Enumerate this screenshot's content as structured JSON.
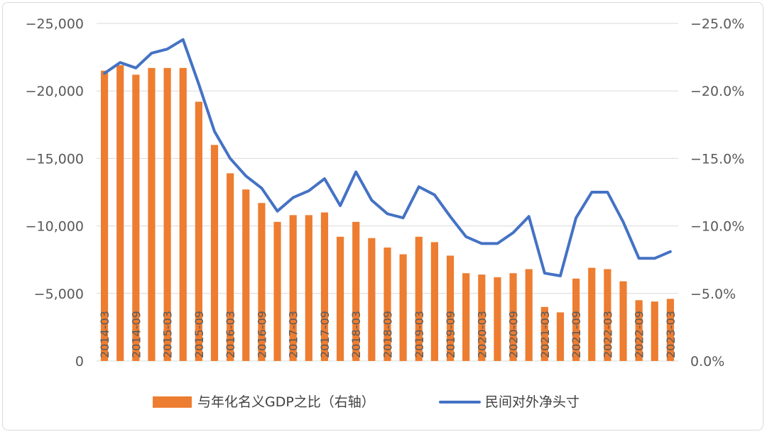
{
  "chart_data": {
    "type": "bar+line",
    "title": "",
    "categories": [
      "2014-03",
      "2014-06",
      "2014-09",
      "2014-12",
      "2015-03",
      "2015-06",
      "2015-09",
      "2015-12",
      "2016-03",
      "2016-06",
      "2016-09",
      "2016-12",
      "2017-03",
      "2017-06",
      "2017-09",
      "2017-12",
      "2018-03",
      "2018-06",
      "2018-09",
      "2018-12",
      "2019-03",
      "2019-06",
      "2019-09",
      "2019-12",
      "2020-03",
      "2020-06",
      "2020-09",
      "2020-12",
      "2021-03",
      "2021-06",
      "2021-09",
      "2021-12",
      "2022-03",
      "2022-06",
      "2022-09",
      "2022-12",
      "2023-03"
    ],
    "category_labels_shown": [
      "2014-03",
      "2014-09",
      "2015-03",
      "2015-09",
      "2016-03",
      "2016-09",
      "2017-03",
      "2017-09",
      "2018-03",
      "2018-09",
      "2019-03",
      "2019-09",
      "2020-03",
      "2020-09",
      "2021-03",
      "2021-09",
      "2022-03",
      "2022-09",
      "2023-03"
    ],
    "series": [
      {
        "name": "与年化名义GDP之比（右轴）",
        "type": "bar",
        "axis": "right",
        "color": "#ED7D31",
        "values": [
          -21.5,
          -21.9,
          -21.2,
          -21.7,
          -21.7,
          -21.7,
          -19.2,
          -16.0,
          -13.9,
          -12.7,
          -11.7,
          -10.3,
          -10.8,
          -10.8,
          -11.0,
          -9.2,
          -10.3,
          -9.1,
          -8.4,
          -7.9,
          -9.2,
          -8.8,
          -7.8,
          -6.5,
          -6.4,
          -6.2,
          -6.5,
          -6.8,
          -4.0,
          -3.6,
          -6.1,
          -6.9,
          -6.8,
          -5.9,
          -4.5,
          -4.4,
          -4.6
        ]
      },
      {
        "name": "民间对外净头寸",
        "type": "line",
        "axis": "left",
        "color": "#4472C4",
        "values": [
          -21300,
          -22100,
          -21700,
          -22800,
          -23100,
          -23800,
          -20500,
          -17000,
          -15000,
          -13700,
          -12800,
          -11100,
          -12100,
          -12600,
          -13500,
          -11500,
          -14000,
          -11900,
          -10900,
          -10600,
          -12900,
          -12300,
          -10700,
          -9200,
          -8700,
          -8700,
          -9500,
          -10700,
          -6500,
          -6300,
          -10600,
          -12500,
          -12500,
          -10300,
          -7600,
          -7600,
          -8100
        ]
      }
    ],
    "y_left": {
      "min": 0,
      "max": -25000,
      "ticks": [
        "−25,000",
        "−20,000",
        "−15,000",
        "−10,000",
        "−5,000",
        "0"
      ]
    },
    "y_right": {
      "min": 0,
      "max": -25.0,
      "ticks": [
        "−25.0%",
        "−20.0%",
        "−15.0%",
        "−10.0%",
        "−5.0%",
        "0.0%"
      ]
    },
    "grid": true,
    "legend": {
      "position": "bottom",
      "items": [
        {
          "label": "与年化名义GDP之比（右轴）",
          "color": "#ED7D31",
          "shape": "rect"
        },
        {
          "label": "民间对外净头寸",
          "color": "#4472C4",
          "shape": "line"
        }
      ]
    }
  }
}
